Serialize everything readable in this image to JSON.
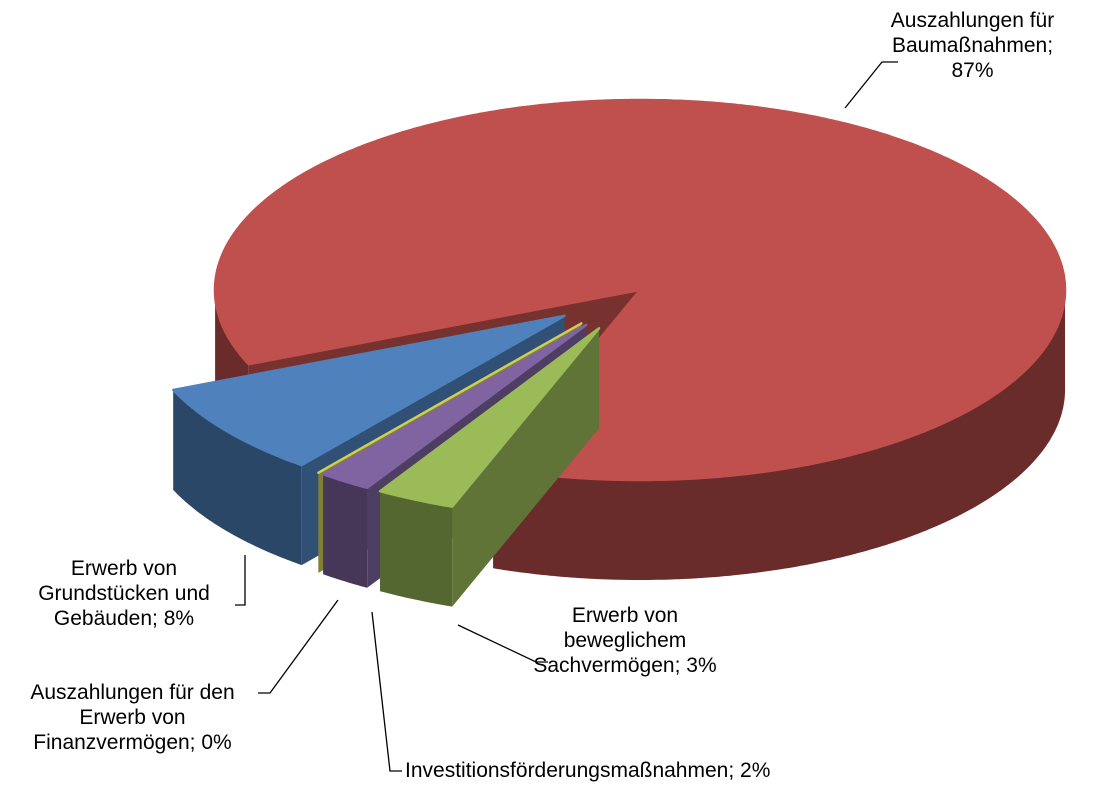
{
  "chart_data": {
    "type": "pie",
    "categories": [
      "Auszahlungen für Baumaßnahmen;",
      "Erwerb von beweglichem Sachvermögen;",
      "Investitionsförderungsmaßnahmen;",
      "Auszahlungen für den Erwerb von Finanzvermögen;",
      "Erwerb von Grundstücken und Gebäuden;"
    ],
    "values": [
      87,
      3,
      2,
      0,
      8
    ],
    "value_labels": [
      "87%",
      "3%",
      "2%",
      "0%",
      "8%"
    ],
    "colors": [
      "#c0504d",
      "#9bbb59",
      "#8064a2",
      "#cfcf55",
      "#4f81bd"
    ]
  }
}
